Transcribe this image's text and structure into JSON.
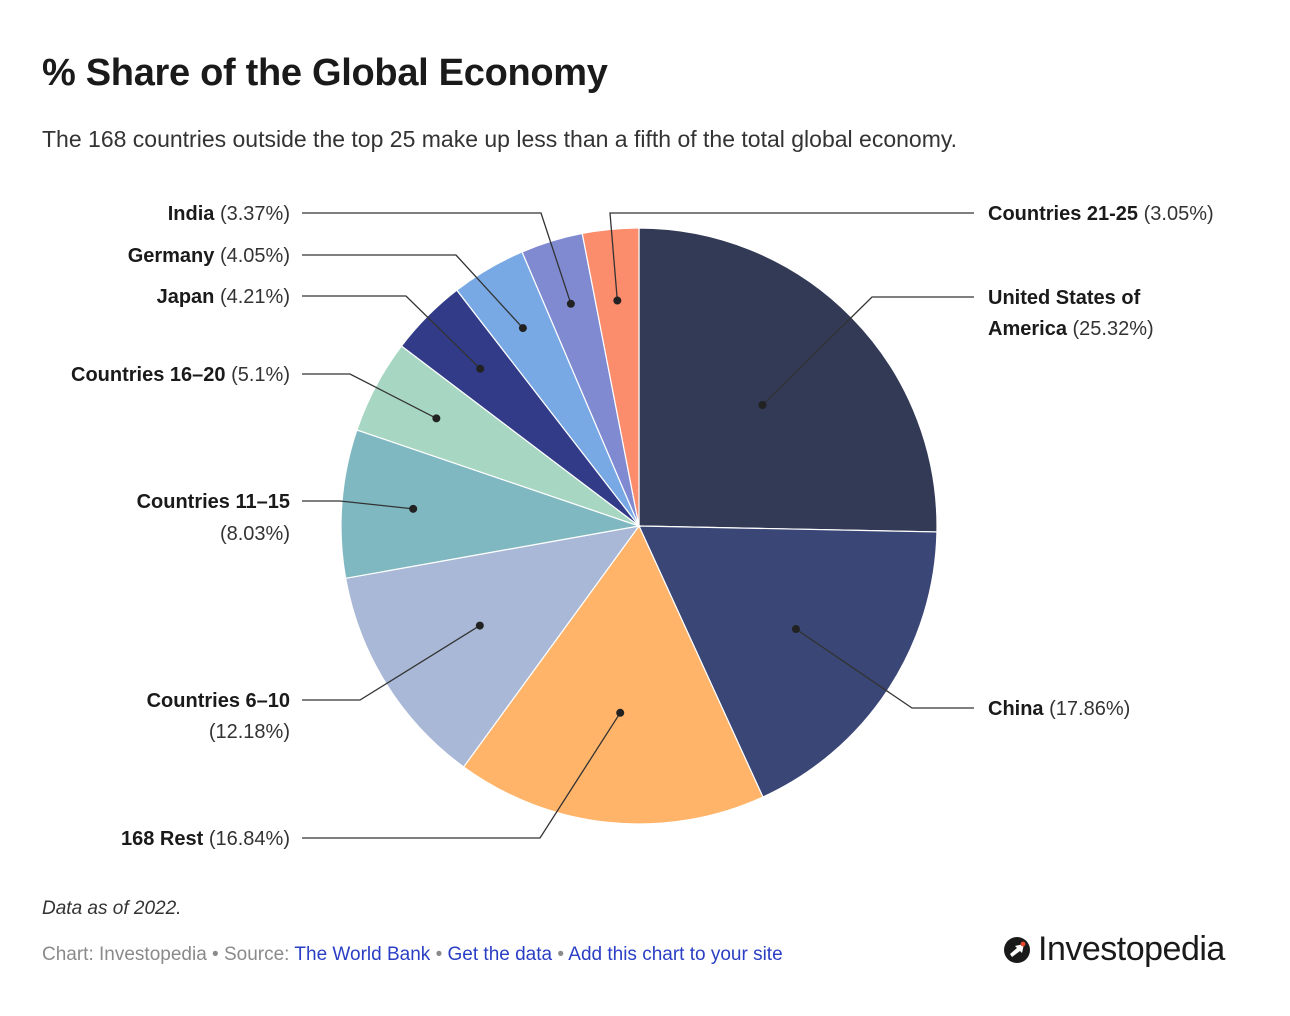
{
  "header": {
    "title": "% Share of the Global Economy",
    "subtitle": "The 168 countries outside the top 25 make up less than a fifth of the total global economy."
  },
  "chart_data": {
    "type": "pie",
    "title": "% Share of the Global Economy",
    "subtitle": "The 168 countries outside the top 25 make up less than a fifth of the total global economy.",
    "unit": "%",
    "slices": [
      {
        "name": "United States of America",
        "lines": [
          "United States of",
          "America"
        ],
        "value": 25.32,
        "pct_label": "(25.32%)",
        "color": "#323a56"
      },
      {
        "name": "China",
        "lines": [
          "China"
        ],
        "value": 17.86,
        "pct_label": "(17.86%)",
        "color": "#3a4675"
      },
      {
        "name": "168 Rest",
        "lines": [
          "168 Rest"
        ],
        "value": 16.84,
        "pct_label": "(16.84%)",
        "color": "#ffb46a"
      },
      {
        "name": "Countries 6–10",
        "lines": [
          "Countries 6–10"
        ],
        "value": 12.18,
        "pct_label": "(12.18%)",
        "color": "#a8b8d6"
      },
      {
        "name": "Countries 11–15",
        "lines": [
          "Countries 11–15"
        ],
        "value": 8.03,
        "pct_label": "(8.03%)",
        "color": "#7fb8c0"
      },
      {
        "name": "Countries 16–20",
        "lines": [
          "Countries 16–20"
        ],
        "value": 5.1,
        "pct_label": "(5.1%)",
        "color": "#a7d7c2"
      },
      {
        "name": "Japan",
        "lines": [
          "Japan"
        ],
        "value": 4.21,
        "pct_label": "(4.21%)",
        "color": "#313b88"
      },
      {
        "name": "Germany",
        "lines": [
          "Germany"
        ],
        "value": 4.05,
        "pct_label": "(4.05%)",
        "color": "#78a9e4"
      },
      {
        "name": "India",
        "lines": [
          "India"
        ],
        "value": 3.37,
        "pct_label": "(3.37%)",
        "color": "#7f8ad1"
      },
      {
        "name": "Countries 21-25",
        "lines": [
          "Countries 21-25"
        ],
        "value": 3.05,
        "pct_label": "(3.05%)",
        "color": "#fb8c6c"
      }
    ]
  },
  "footer": {
    "note": "Data as of 2022.",
    "chart_credit": "Chart: Investopedia",
    "bullet": "•",
    "source_prefix": "Source:",
    "source_link": "The World Bank",
    "get_data": "Get the data",
    "add_chart": "Add this chart to your site"
  },
  "brand": {
    "name": "Investopedia",
    "accent": "#e8472f"
  }
}
